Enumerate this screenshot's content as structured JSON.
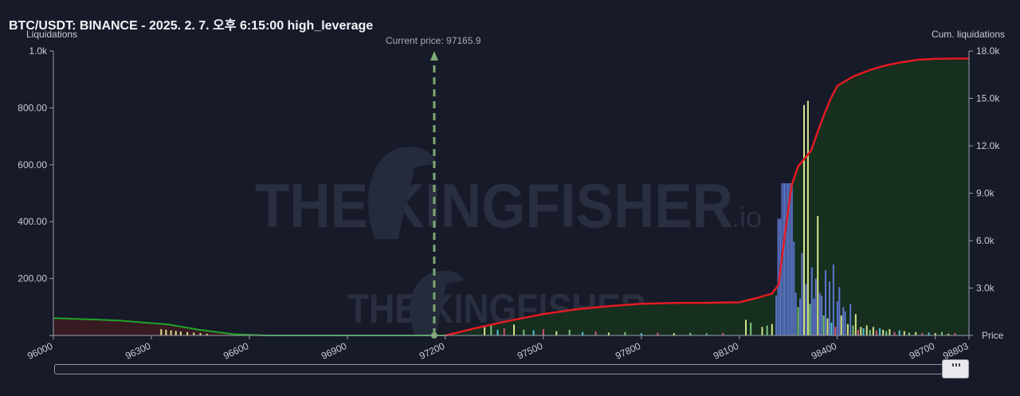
{
  "header": {
    "title": "BTC/USDT: BINANCE - 2025. 2. 7. 오후 6:15:00 high_leverage",
    "left_axis_title": "Liquidations",
    "right_axis_title": "Cum. liquidations",
    "x_axis_title": "Price",
    "current_price_label": "Current price: 97165.9"
  },
  "colors": {
    "background": "#161a29",
    "cum_line_above": "#e31b23",
    "cum_line_below": "#21a327",
    "area_above": "#16301f",
    "area_below": "#3a1a22",
    "current_price": "#7daa72",
    "bar_blue": "#5b74c9",
    "bar_yellow": "#d6e38c",
    "bar_green": "#7bc17d",
    "bar_cyan": "#57c1d4",
    "bar_red": "#d2507a"
  },
  "watermark": {
    "brand": "THE KINGFISHER",
    "suffix": ".io"
  },
  "chart_data": {
    "type": "bar",
    "title": "BTC/USDT: BINANCE - 2025. 2. 7. 오후 6:15:00 high_leverage",
    "xlabel": "Price",
    "ylabel": "Liquidations",
    "y2label": "Cum. liquidations",
    "xlim": [
      96000,
      98803
    ],
    "ylim": [
      0,
      1000
    ],
    "y2lim": [
      0,
      18000
    ],
    "x_ticks": [
      96000,
      96300,
      96600,
      96900,
      97200,
      97500,
      97800,
      98100,
      98400,
      98700,
      98803
    ],
    "x_tick_labels": [
      "96000",
      "96300",
      "96600",
      "96900",
      "97200",
      "97500",
      "97800",
      "98100",
      "98400",
      "98700",
      "98803"
    ],
    "y_ticks": [
      0,
      200,
      400,
      600,
      800,
      1000
    ],
    "y_tick_labels": [
      "",
      "200.00",
      "400.00",
      "600.00",
      "800.00",
      "1.0k"
    ],
    "y2_ticks": [
      0,
      3000,
      6000,
      9000,
      12000,
      15000,
      18000
    ],
    "y2_tick_labels": [
      "",
      "3.0k",
      "6.0k",
      "9.0k",
      "12.0k",
      "15.0k",
      "18.0k"
    ],
    "current_price": 97165.9,
    "grid": false,
    "bars": [
      {
        "x": 96330,
        "y": 22,
        "c": "yellow"
      },
      {
        "x": 96345,
        "y": 20,
        "c": "yellow"
      },
      {
        "x": 96360,
        "y": 18,
        "c": "yellow"
      },
      {
        "x": 96375,
        "y": 16,
        "c": "yellow"
      },
      {
        "x": 96390,
        "y": 14,
        "c": "yellow"
      },
      {
        "x": 96410,
        "y": 12,
        "c": "yellow"
      },
      {
        "x": 96430,
        "y": 10,
        "c": "yellow"
      },
      {
        "x": 96450,
        "y": 8,
        "c": "yellow"
      },
      {
        "x": 96470,
        "y": 6,
        "c": "yellow"
      },
      {
        "x": 97320,
        "y": 30,
        "c": "yellow"
      },
      {
        "x": 97340,
        "y": 35,
        "c": "green"
      },
      {
        "x": 97360,
        "y": 20,
        "c": "cyan"
      },
      {
        "x": 97380,
        "y": 25,
        "c": "red"
      },
      {
        "x": 97410,
        "y": 38,
        "c": "yellow"
      },
      {
        "x": 97440,
        "y": 20,
        "c": "green"
      },
      {
        "x": 97470,
        "y": 18,
        "c": "cyan"
      },
      {
        "x": 97500,
        "y": 22,
        "c": "red"
      },
      {
        "x": 97540,
        "y": 15,
        "c": "yellow"
      },
      {
        "x": 97580,
        "y": 20,
        "c": "green"
      },
      {
        "x": 97620,
        "y": 12,
        "c": "cyan"
      },
      {
        "x": 97660,
        "y": 14,
        "c": "red"
      },
      {
        "x": 97700,
        "y": 10,
        "c": "yellow"
      },
      {
        "x": 97750,
        "y": 12,
        "c": "green"
      },
      {
        "x": 97800,
        "y": 8,
        "c": "cyan"
      },
      {
        "x": 97850,
        "y": 10,
        "c": "red"
      },
      {
        "x": 97900,
        "y": 8,
        "c": "yellow"
      },
      {
        "x": 97950,
        "y": 9,
        "c": "green"
      },
      {
        "x": 98000,
        "y": 7,
        "c": "cyan"
      },
      {
        "x": 98050,
        "y": 9,
        "c": "red"
      },
      {
        "x": 98120,
        "y": 55,
        "c": "yellow"
      },
      {
        "x": 98135,
        "y": 45,
        "c": "green"
      },
      {
        "x": 98170,
        "y": 30,
        "c": "yellow"
      },
      {
        "x": 98185,
        "y": 35,
        "c": "green"
      },
      {
        "x": 98200,
        "y": 40,
        "c": "yellow"
      },
      {
        "x": 98213,
        "y": 140,
        "c": "blue"
      },
      {
        "x": 98219,
        "y": 410,
        "c": "blue"
      },
      {
        "x": 98225,
        "y": 410,
        "c": "blue"
      },
      {
        "x": 98231,
        "y": 535,
        "c": "blue"
      },
      {
        "x": 98237,
        "y": 535,
        "c": "blue"
      },
      {
        "x": 98243,
        "y": 535,
        "c": "blue"
      },
      {
        "x": 98249,
        "y": 535,
        "c": "blue"
      },
      {
        "x": 98255,
        "y": 535,
        "c": "blue"
      },
      {
        "x": 98261,
        "y": 535,
        "c": "blue"
      },
      {
        "x": 98267,
        "y": 330,
        "c": "blue"
      },
      {
        "x": 98273,
        "y": 150,
        "c": "blue"
      },
      {
        "x": 98280,
        "y": 100,
        "c": "green"
      },
      {
        "x": 98286,
        "y": 130,
        "c": "blue"
      },
      {
        "x": 98292,
        "y": 290,
        "c": "blue"
      },
      {
        "x": 98298,
        "y": 810,
        "c": "yellow"
      },
      {
        "x": 98304,
        "y": 180,
        "c": "blue"
      },
      {
        "x": 98310,
        "y": 825,
        "c": "yellow"
      },
      {
        "x": 98316,
        "y": 110,
        "c": "green"
      },
      {
        "x": 98322,
        "y": 240,
        "c": "blue"
      },
      {
        "x": 98328,
        "y": 130,
        "c": "blue"
      },
      {
        "x": 98334,
        "y": 200,
        "c": "blue"
      },
      {
        "x": 98340,
        "y": 420,
        "c": "yellow"
      },
      {
        "x": 98346,
        "y": 150,
        "c": "blue"
      },
      {
        "x": 98352,
        "y": 140,
        "c": "blue"
      },
      {
        "x": 98358,
        "y": 70,
        "c": "green"
      },
      {
        "x": 98364,
        "y": 230,
        "c": "blue"
      },
      {
        "x": 98370,
        "y": 60,
        "c": "yellow"
      },
      {
        "x": 98376,
        "y": 190,
        "c": "blue"
      },
      {
        "x": 98382,
        "y": 45,
        "c": "cyan"
      },
      {
        "x": 98388,
        "y": 250,
        "c": "blue"
      },
      {
        "x": 98394,
        "y": 30,
        "c": "red"
      },
      {
        "x": 98400,
        "y": 120,
        "c": "blue"
      },
      {
        "x": 98406,
        "y": 170,
        "c": "blue"
      },
      {
        "x": 98412,
        "y": 70,
        "c": "yellow"
      },
      {
        "x": 98418,
        "y": 100,
        "c": "blue"
      },
      {
        "x": 98424,
        "y": 85,
        "c": "blue"
      },
      {
        "x": 98432,
        "y": 40,
        "c": "yellow"
      },
      {
        "x": 98440,
        "y": 110,
        "c": "blue"
      },
      {
        "x": 98448,
        "y": 35,
        "c": "green"
      },
      {
        "x": 98456,
        "y": 75,
        "c": "yellow"
      },
      {
        "x": 98464,
        "y": 20,
        "c": "red"
      },
      {
        "x": 98472,
        "y": 30,
        "c": "yellow"
      },
      {
        "x": 98480,
        "y": 25,
        "c": "cyan"
      },
      {
        "x": 98490,
        "y": 35,
        "c": "yellow"
      },
      {
        "x": 98500,
        "y": 20,
        "c": "green"
      },
      {
        "x": 98510,
        "y": 30,
        "c": "yellow"
      },
      {
        "x": 98520,
        "y": 18,
        "c": "red"
      },
      {
        "x": 98530,
        "y": 25,
        "c": "cyan"
      },
      {
        "x": 98540,
        "y": 20,
        "c": "yellow"
      },
      {
        "x": 98550,
        "y": 15,
        "c": "green"
      },
      {
        "x": 98560,
        "y": 22,
        "c": "yellow"
      },
      {
        "x": 98575,
        "y": 12,
        "c": "red"
      },
      {
        "x": 98590,
        "y": 18,
        "c": "cyan"
      },
      {
        "x": 98605,
        "y": 15,
        "c": "yellow"
      },
      {
        "x": 98620,
        "y": 10,
        "c": "green"
      },
      {
        "x": 98640,
        "y": 12,
        "c": "yellow"
      },
      {
        "x": 98660,
        "y": 8,
        "c": "red"
      },
      {
        "x": 98680,
        "y": 10,
        "c": "cyan"
      },
      {
        "x": 98700,
        "y": 8,
        "c": "yellow"
      },
      {
        "x": 98720,
        "y": 12,
        "c": "green"
      },
      {
        "x": 98740,
        "y": 6,
        "c": "yellow"
      },
      {
        "x": 98760,
        "y": 8,
        "c": "red"
      }
    ],
    "cumulative_below": {
      "name": "Cum. liquidations (below price)",
      "x": [
        96000,
        96200,
        96350,
        96450,
        96550,
        96650,
        97200
      ],
      "y": [
        1100,
        950,
        700,
        350,
        80,
        0,
        0
      ]
    },
    "cumulative_above": {
      "name": "Cum. liquidations (above price)",
      "x": [
        97200,
        97300,
        97400,
        97500,
        97600,
        97700,
        97800,
        97900,
        98000,
        98100,
        98150,
        98200,
        98220,
        98240,
        98260,
        98280,
        98300,
        98320,
        98340,
        98360,
        98380,
        98400,
        98450,
        98500,
        98550,
        98600,
        98650,
        98700,
        98750,
        98803
      ],
      "y": [
        0,
        500,
        950,
        1350,
        1650,
        1850,
        2000,
        2050,
        2060,
        2100,
        2350,
        2650,
        3200,
        6500,
        9500,
        10700,
        11200,
        11700,
        12900,
        14000,
        15000,
        15800,
        16400,
        16800,
        17100,
        17300,
        17450,
        17500,
        17520,
        17520
      ]
    }
  }
}
